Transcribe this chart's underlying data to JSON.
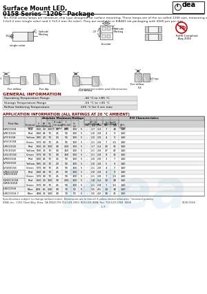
{
  "title_line1": "Surface Mount LED,",
  "title_line2": "0158 Series \"1206\" Package",
  "description": "The 0158 series lamps are miniature chip type designed for surface mounting. These lamps are of the so-called 1206 size, measuring approximately 1.6x3.2 mm (single color) and 2.7x3.2 mm (bi-color).   They are available in EIA481 tdr packaging with 3000 pcs per reel.",
  "general_info_title": "GENERAL INFORMATION",
  "general_rows": [
    [
      "Operating Temperature Range",
      "-40 °C to +85 °C"
    ],
    [
      "Storage Temperature Range",
      "-55 °C to +45 °C"
    ],
    [
      "Reflow Soldering Temperature",
      "235 °C for 3 sec max"
    ]
  ],
  "app_info_title": "APPLICATION INFORMATION (ALL RATINGS AT 20 °C AMBIENT)",
  "table_data": [
    [
      "IGRC0158",
      "Red",
      "660",
      "20",
      "100",
      "30",
      "200",
      "100",
      "5",
      "–",
      "1.7",
      "2.4",
      "7",
      "18",
      "140"
    ],
    [
      "IVRC0158",
      "Red",
      "640",
      "45",
      "70",
      "25",
      "90",
      "100",
      "5",
      "–",
      "2.0",
      "2.8",
      "4",
      "9",
      "140"
    ],
    [
      "IVYC0158",
      "Yellow",
      "585",
      "20",
      "70",
      "20",
      "90",
      "100",
      "5",
      "–",
      "2.0",
      "2.8",
      "4",
      "9",
      "140"
    ],
    [
      "IVGC0158",
      "Green",
      "570",
      "30",
      "70",
      "25",
      "90",
      "100",
      "5",
      "–",
      "2.1",
      "2.8",
      "7",
      "1.5",
      "140"
    ],
    [
      "IURC0158",
      "Red",
      "660",
      "20",
      "100",
      "30",
      "200",
      "100",
      "5",
      "–",
      "1.7",
      "2.4",
      "20",
      "35",
      "140"
    ],
    [
      "IUYC0158",
      "Yellow",
      "590",
      "15",
      "70",
      "30",
      "160",
      "100",
      "5",
      "–",
      "2.1",
      "2.8",
      "27",
      "47",
      "140"
    ],
    [
      "IUGC0158",
      "Green",
      "570",
      "30",
      "70",
      "30",
      "160",
      "100",
      "5",
      "–",
      "2.1",
      "2.8",
      "8",
      "15",
      "140"
    ],
    [
      "IVRD0158",
      "Red",
      "640",
      "45",
      "70",
      "25",
      "90",
      "100",
      "5",
      "–",
      "2.0",
      "2.8",
      "3",
      "7",
      "140"
    ],
    [
      "IVYD0158",
      "Yellow",
      "585",
      "20",
      "70",
      "20",
      "90",
      "100",
      "5",
      "–",
      "2.0",
      "2.8",
      "5",
      "9",
      "140"
    ],
    [
      "IVGD0158",
      "Green",
      "570",
      "30",
      "70",
      "25",
      "90",
      "100",
      "5",
      "–",
      "2.1",
      "2.8",
      "4",
      "7",
      "140"
    ],
    [
      "IVRDC0158",
      "Red",
      "640",
      "45",
      "70",
      "25",
      "90",
      "100",
      "5",
      "–",
      "2.0",
      "2.8",
      "4",
      "9",
      "140"
    ],
    [
      "",
      "Green",
      "570",
      "30",
      "70",
      "25",
      "90",
      "100",
      "5",
      "–",
      "2.1",
      "2.8",
      "7",
      "1.5",
      "140"
    ],
    [
      "IGRDC0158",
      "Red",
      "660",
      "20",
      "100",
      "30",
      "200",
      "100",
      "5",
      "–",
      "1.8",
      "2.4",
      "10",
      "18",
      "140"
    ],
    [
      "",
      "Green",
      "570",
      "30",
      "70",
      "25",
      "90",
      "100",
      "5",
      "–",
      "2.1",
      "2.8",
      "7",
      "1.5",
      "140"
    ],
    [
      "IUBC0158",
      "Blue",
      "428",
      "65",
      "140",
      "30",
      "70",
      "50",
      "5",
      ".",
      "3.5",
      "4.5",
      "14",
      "18",
      "140"
    ],
    [
      "IUBC0158-7",
      "Blue",
      "468",
      "25",
      "140",
      "30",
      "70",
      "50",
      "5",
      ".",
      "3.5",
      "4.0",
      "18",
      "25",
      "140"
    ]
  ],
  "footer_line1": "Specifications subject to change without notice. Dimensions are in mm±0.3 unless stated otherwise. *reversed polarity",
  "footer_line2": "IDEA, Inc., 1351 Titan Way, Brea, CA 92821 PH:714-529-3302, 800-LED-IDEA; Fax: 714-529-3304  0608",
  "footer_right": "0130-0158",
  "page": "L-3",
  "bg_color": "#ffffff"
}
